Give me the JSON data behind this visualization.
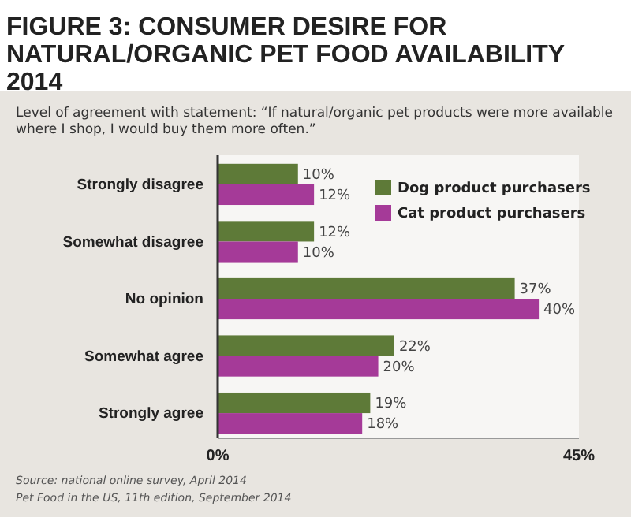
{
  "chart_data": {
    "type": "bar",
    "orientation": "horizontal",
    "title": "FIGURE 3: CONSUMER DESIRE FOR NATURAL/ORGANIC PET FOOD AVAILABILITY 2014",
    "subtitle": "Level of agreement with statement: “If natural/organic pet products were more available where I shop, I would buy them more often.”",
    "categories": [
      "Strongly disagree",
      "Somewhat disagree",
      "No opinion",
      "Somewhat agree",
      "Strongly agree"
    ],
    "series": [
      {
        "name": "Dog product purchasers",
        "color": "#5e7a38",
        "values": [
          10,
          12,
          37,
          22,
          19
        ]
      },
      {
        "name": "Cat product purchasers",
        "color": "#a53a98",
        "values": [
          12,
          10,
          40,
          20,
          18
        ]
      }
    ],
    "xlim": [
      0,
      45
    ],
    "xticks": [
      {
        "value": 0,
        "label": "0%"
      },
      {
        "value": 45,
        "label": "45%"
      }
    ],
    "value_labels": [
      [
        "10%",
        "12%",
        "37%",
        "22%",
        "19%"
      ],
      [
        "12%",
        "10%",
        "40%",
        "20%",
        "18%"
      ]
    ],
    "legend": "top right",
    "grid": false,
    "annotations": [
      "Source: national online survey, April 2014",
      "Pet Food in the US, 11th edition, September 2014"
    ]
  }
}
